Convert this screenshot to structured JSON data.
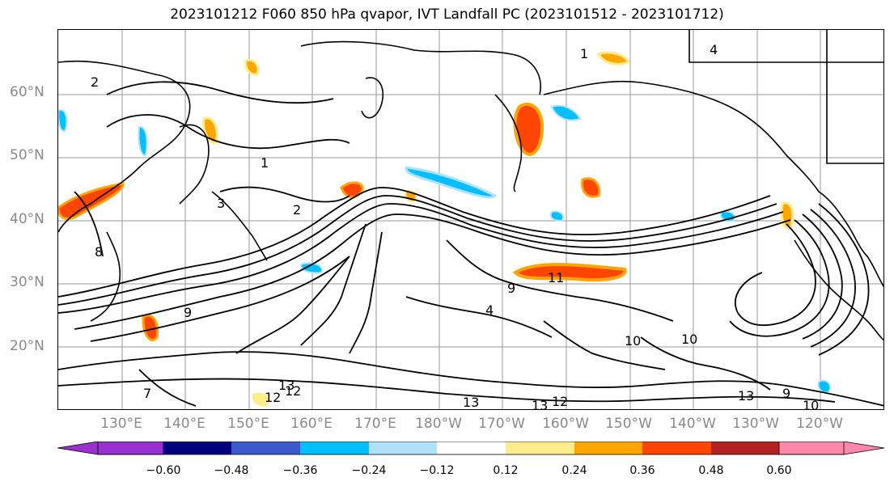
{
  "title": "2023101212 F060 850 hPa qvapor, IVT Landfall PC (2023101512 - 2023101712)",
  "lat_labels": [
    "60°N",
    "50°N",
    "40°N",
    "30°N",
    "20°N"
  ],
  "lon_labels": [
    "130°E",
    "140°E",
    "150°E",
    "160°E",
    "170°E",
    "180°W",
    "170°W",
    "160°W",
    "150°W",
    "140°W",
    "130°W",
    "120°W"
  ],
  "colorbar": {
    "ticks": [
      "−0.60",
      "−0.48",
      "−0.36",
      "−0.24",
      "−0.12",
      "0.12",
      "0.24",
      "0.36",
      "0.48",
      "0.60"
    ],
    "colors": [
      "#9b30d0",
      "#00007f",
      "#3a5acb",
      "#00bfff",
      "#b0e2ff",
      "#ffffff",
      "#ffec8b",
      "#ffa500",
      "#ff4500",
      "#b22222",
      "#ff88aa"
    ]
  },
  "contour_labels": [
    "2",
    "1",
    "4",
    "1",
    "2",
    "3",
    "8",
    "11",
    "9",
    "9",
    "4",
    "10",
    "13",
    "12",
    "13",
    "12",
    "9",
    "10",
    "10",
    "12",
    "13",
    "13",
    "7"
  ]
}
